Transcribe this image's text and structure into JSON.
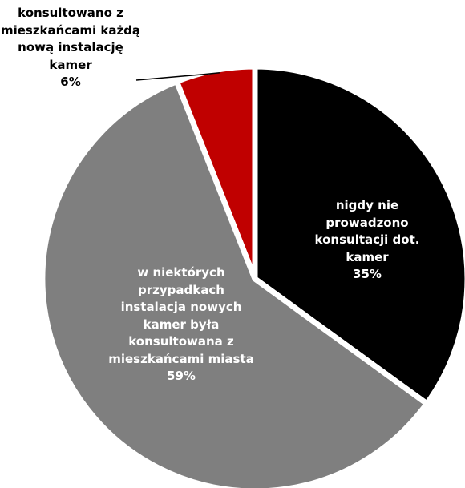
{
  "chart_data": {
    "type": "pie",
    "categories": [
      "nigdy nie prowadzono konsultacji dot. kamer",
      "w niektórych przypadkach instalacja nowych kamer była konsultowana z mieszkańcami miasta",
      "konsultowano z mieszkańcami każdą nową instalację kamer"
    ],
    "values": [
      35,
      59,
      6
    ],
    "value_labels": [
      "35%",
      "59%",
      "6%"
    ],
    "colors": [
      "#000000",
      "#7f7f7f",
      "#c00000"
    ]
  }
}
